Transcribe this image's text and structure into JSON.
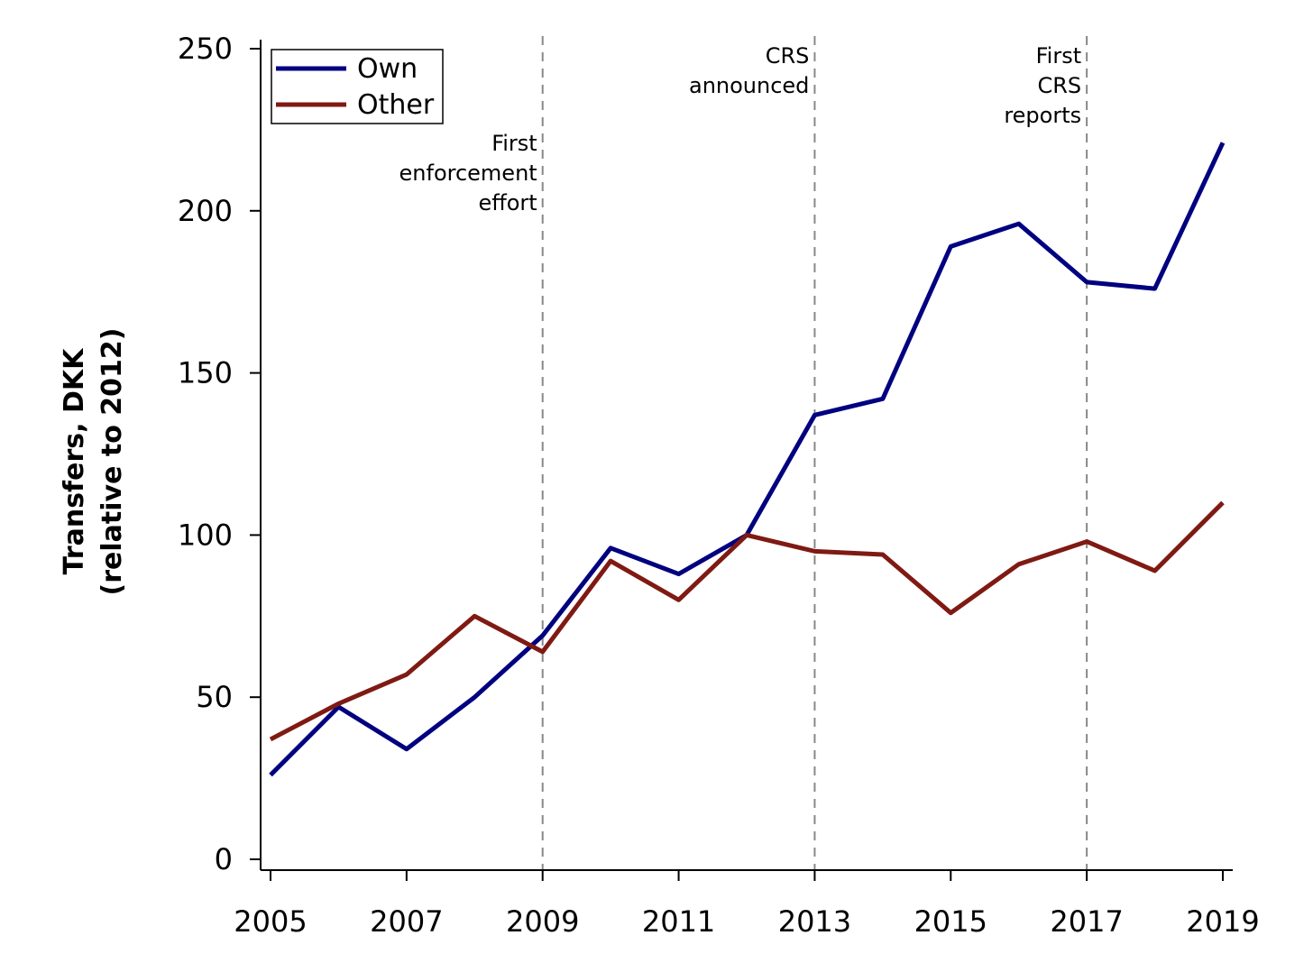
{
  "chart_data": {
    "type": "line",
    "title": "",
    "xlabel": "",
    "ylabel": [
      "Transfers, DKK",
      "(relative to 2012)"
    ],
    "x": [
      2005,
      2006,
      2007,
      2008,
      2009,
      2010,
      2011,
      2012,
      2013,
      2014,
      2015,
      2016,
      2017,
      2018,
      2019
    ],
    "xlim": [
      2005,
      2019
    ],
    "ylim": [
      0,
      250
    ],
    "x_ticks": [
      "2005",
      "2007",
      "2009",
      "2011",
      "2013",
      "2015",
      "2017",
      "2019"
    ],
    "y_ticks": [
      "0",
      "50",
      "100",
      "150",
      "200",
      "250"
    ],
    "grid": false,
    "legend_position": "top-left",
    "series": [
      {
        "name": "Own",
        "color": "#000080",
        "values": [
          26,
          47,
          34,
          50,
          69,
          96,
          88,
          100,
          137,
          142,
          189,
          196,
          178,
          176,
          221
        ]
      },
      {
        "name": "Other",
        "color": "#7f1a13",
        "values": [
          37,
          48,
          57,
          75,
          64,
          92,
          80,
          100,
          95,
          94,
          76,
          91,
          98,
          89,
          110
        ]
      }
    ],
    "annotations": [
      {
        "x": 2009,
        "lines": [
          "First",
          "enforcement",
          "effort"
        ]
      },
      {
        "x": 2013,
        "lines": [
          "CRS",
          "announced"
        ]
      },
      {
        "x": 2017,
        "lines": [
          "First",
          "CRS",
          "reports"
        ]
      }
    ]
  }
}
